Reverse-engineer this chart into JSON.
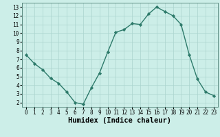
{
  "x": [
    0,
    1,
    2,
    3,
    4,
    5,
    6,
    7,
    8,
    9,
    10,
    11,
    12,
    13,
    14,
    15,
    16,
    17,
    18,
    19,
    20,
    21,
    22,
    23
  ],
  "y": [
    7.5,
    6.5,
    5.8,
    4.8,
    4.2,
    3.2,
    2.0,
    1.8,
    3.7,
    5.4,
    7.8,
    10.1,
    10.4,
    11.1,
    11.0,
    12.2,
    13.0,
    12.5,
    12.0,
    11.0,
    7.5,
    4.7,
    3.2,
    2.8
  ],
  "line_color": "#2d7a6a",
  "marker": "D",
  "markersize": 2.2,
  "linewidth": 1.0,
  "bg_color": "#cceee8",
  "grid_color": "#aad4ce",
  "xlabel": "Humidex (Indice chaleur)",
  "xlim": [
    -0.5,
    23.5
  ],
  "ylim": [
    1.5,
    13.5
  ],
  "xticks": [
    0,
    1,
    2,
    3,
    4,
    5,
    6,
    7,
    8,
    9,
    10,
    11,
    12,
    13,
    14,
    15,
    16,
    17,
    18,
    19,
    20,
    21,
    22,
    23
  ],
  "yticks": [
    2,
    3,
    4,
    5,
    6,
    7,
    8,
    9,
    10,
    11,
    12,
    13
  ],
  "tick_fontsize": 5.5,
  "xlabel_fontsize": 7.5
}
